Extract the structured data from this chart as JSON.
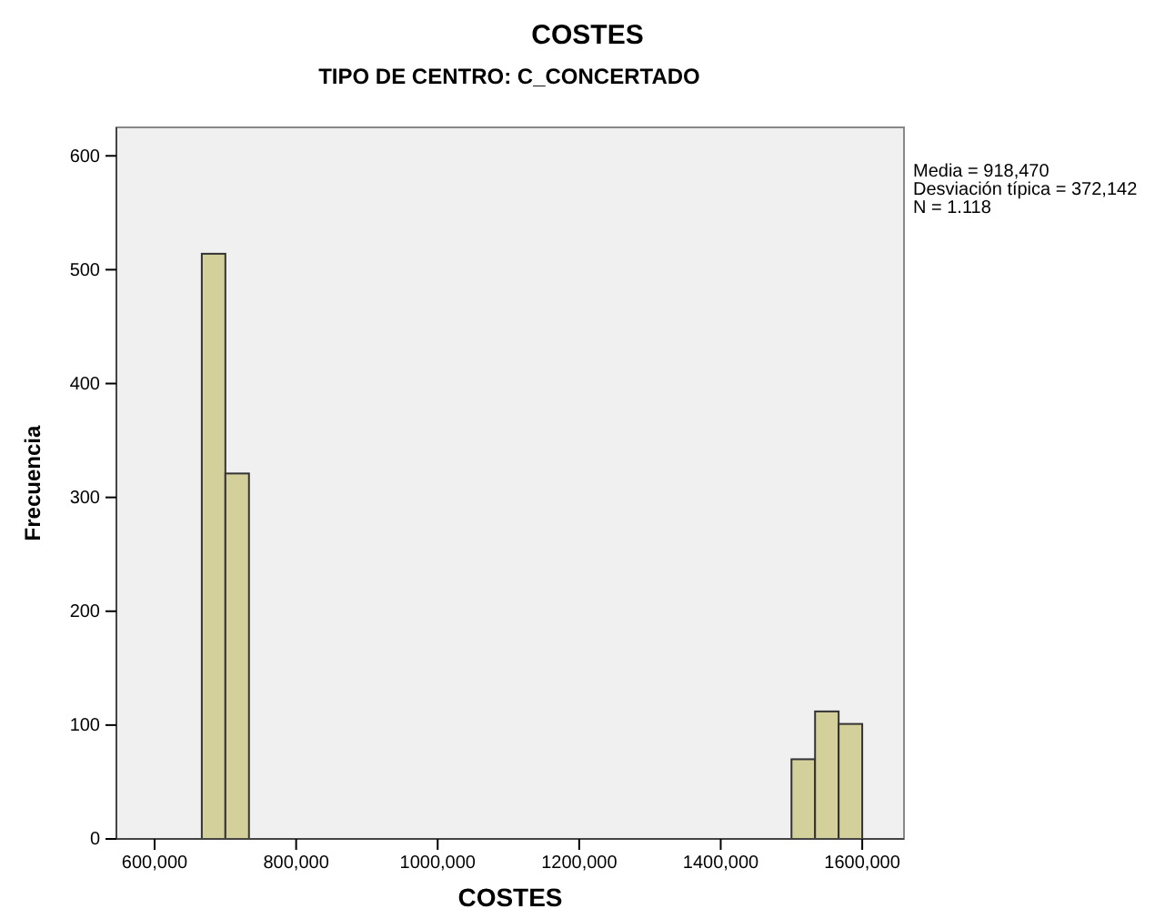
{
  "chart_data": {
    "type": "histogram",
    "title": "COSTES",
    "subtitle": "TIPO DE CENTRO: C_CONCERTADO",
    "xlabel": "COSTES",
    "ylabel": "Frecuencia",
    "bins": [
      666667,
      700000,
      733333,
      766667,
      800000,
      833333,
      866667,
      900000,
      933333,
      966667,
      1000000,
      1033333,
      1066667,
      1100000,
      1133333,
      1166667,
      1200000,
      1233333,
      1266667,
      1300000,
      1333333,
      1366667,
      1400000,
      1433333,
      1466667,
      1500000,
      1533333,
      1566667,
      1600000
    ],
    "values": [
      514,
      321,
      0,
      0,
      0,
      0,
      0,
      0,
      0,
      0,
      0,
      0,
      0,
      0,
      0,
      0,
      0,
      0,
      0,
      0,
      0,
      0,
      0,
      0,
      0,
      70,
      112,
      101
    ],
    "color": "#d4d09c",
    "xlim": [
      546000,
      1659000
    ],
    "xticks": [
      {
        "value": 600000,
        "label": "600,000"
      },
      {
        "value": 800000,
        "label": "800,000"
      },
      {
        "value": 1000000,
        "label": "1000,000"
      },
      {
        "value": 1200000,
        "label": "1200,000"
      },
      {
        "value": 1400000,
        "label": "1400,000"
      },
      {
        "value": 1600000,
        "label": "1600,000"
      }
    ],
    "ylim": [
      0,
      625
    ],
    "yticks": [
      0,
      100,
      200,
      300,
      400,
      500,
      600
    ],
    "grid": false,
    "annotations": [
      "Media = 918,470",
      "Desviación típica = 372,142",
      "N = 1.118"
    ]
  }
}
